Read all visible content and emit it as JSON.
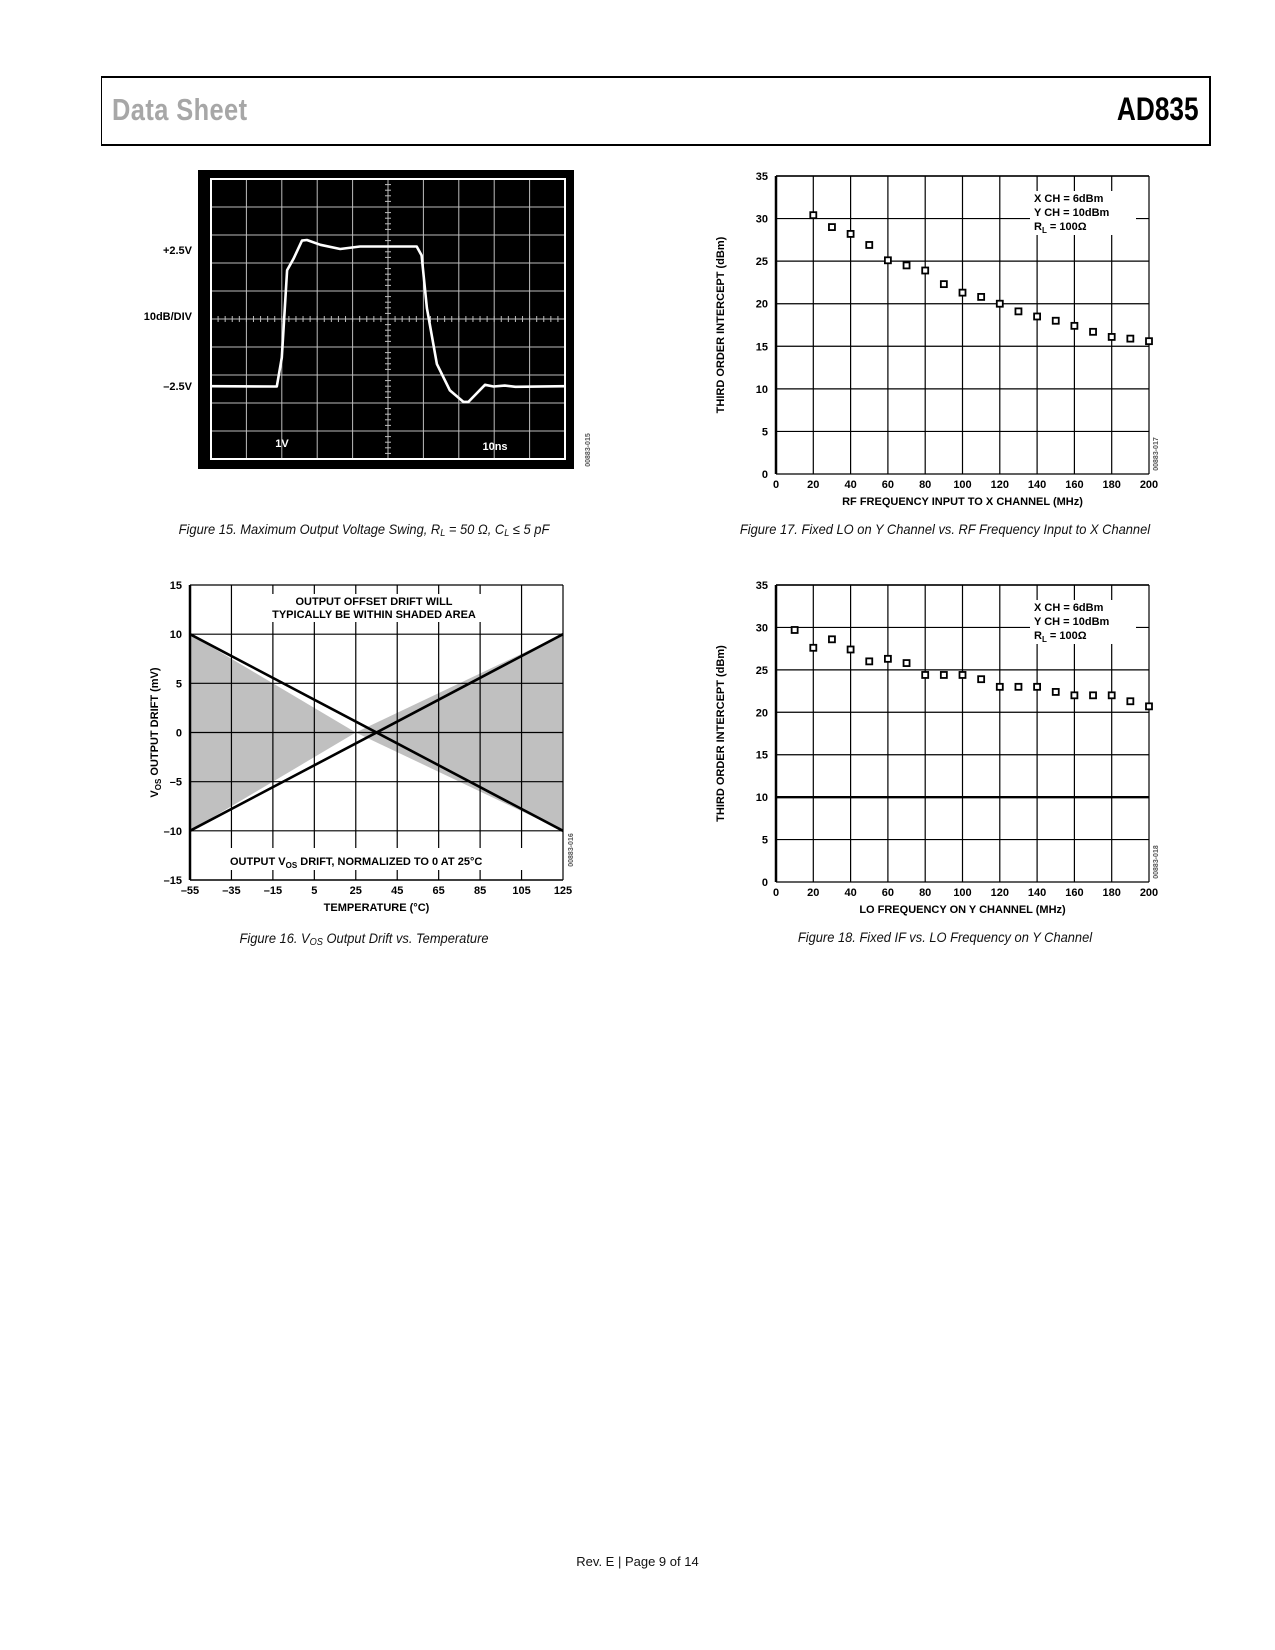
{
  "header": {
    "title_left": "Data Sheet",
    "title_right": "AD835"
  },
  "footer": {
    "text": "Rev. E | Page 9 of 14"
  },
  "captions": {
    "fig15": [
      "Figure 15. Maximum Output Voltage Swing, R",
      "L",
      " = 50 Ω, C",
      "L",
      " ≤ 5 pF"
    ],
    "fig16": [
      "Figure 16. V",
      "OS",
      " Output Drift vs. Temperature"
    ],
    "fig17": [
      "Figure 17. Fixed LO on Y Channel vs. RF Frequency Input to X Channel"
    ],
    "fig18": [
      "Figure 18. Fixed IF vs. LO Frequency on Y Channel"
    ]
  },
  "chart_data": [
    {
      "id": "fig15",
      "type": "line",
      "style": "oscilloscope",
      "colors": {
        "background": "#000000",
        "trace": "#ffffff",
        "grid": "#bdbdbd"
      },
      "divisions": [
        10,
        10
      ],
      "side_labels": [
        "+2.5V",
        "10dB/DIV",
        "–2.5V"
      ],
      "screen_labels": [
        "1V",
        "10ns"
      ],
      "code": "00883-015",
      "trace": {
        "x_div": [
          0,
          1.86,
          2.0,
          2.15,
          2.33,
          2.57,
          2.71,
          3.09,
          3.65,
          4.21,
          5.81,
          5.95,
          6.1,
          6.38,
          6.75,
          7.13,
          7.27,
          7.74,
          7.98,
          8.3,
          8.6,
          10
        ],
        "y_div": [
          2.6,
          2.59,
          3.62,
          6.74,
          7.15,
          7.8,
          7.82,
          7.65,
          7.5,
          7.59,
          7.59,
          7.27,
          5.39,
          3.39,
          2.45,
          2.04,
          2.04,
          2.65,
          2.59,
          2.62,
          2.58,
          2.6
        ]
      }
    },
    {
      "id": "fig17",
      "type": "scatter",
      "xlabel": "RF FREQUENCY INPUT TO X CHANNEL (MHz)",
      "ylabel": "THIRD ORDER INTERCEPT (dBm)",
      "xlim": [
        0,
        200
      ],
      "ylim": [
        0,
        35
      ],
      "xticks": [
        "0",
        "20",
        "40",
        "60",
        "80",
        "100",
        "120",
        "140",
        "160",
        "180",
        "200"
      ],
      "yticks": [
        "0",
        "5",
        "10",
        "15",
        "20",
        "25",
        "30",
        "35"
      ],
      "grid": true,
      "legend": {
        "line1": "X CH = 6dBm",
        "line2": "Y CH = 10dBm",
        "line3_main": "R",
        "line3_sub": "L",
        "line3_rest": " = 100Ω"
      },
      "code": "00883-017",
      "x": [
        20,
        30,
        40,
        50,
        60,
        70,
        80,
        90,
        100,
        110,
        120,
        130,
        140,
        150,
        160,
        170,
        180,
        190,
        200
      ],
      "y": [
        30.4,
        29.0,
        28.2,
        26.9,
        25.1,
        24.5,
        23.9,
        22.3,
        21.3,
        20.8,
        20.0,
        19.1,
        18.5,
        18.0,
        17.4,
        16.7,
        16.1,
        15.9,
        15.6
      ]
    },
    {
      "id": "fig16",
      "type": "area",
      "xlabel": "TEMPERATURE (°C)",
      "ylabel_parts": [
        "V",
        "OS",
        " OUTPUT DRIFT (mV)"
      ],
      "xlim": [
        -55,
        125
      ],
      "ylim": [
        -15,
        15
      ],
      "xticks": [
        "–55",
        "–35",
        "–15",
        "5",
        "25",
        "45",
        "65",
        "85",
        "105",
        "125"
      ],
      "yticks": [
        "–15",
        "–10",
        "–5",
        "0",
        "5",
        "10",
        "15"
      ],
      "grid": true,
      "colors": {
        "shade": "#c0c0c0",
        "line": "#000000"
      },
      "annotation_top": [
        "OUTPUT OFFSET DRIFT WILL",
        "TYPICALLY BE WITHIN SHADED AREA"
      ],
      "annotation_bottom": [
        "OUTPUT V",
        "OS",
        " DRIFT, NORMALIZED TO 0 AT 25°C"
      ],
      "code": "00883-016",
      "upper_bound": {
        "x": [
          -55,
          25,
          125
        ],
        "y": [
          10,
          0,
          10
        ]
      },
      "lower_bound": {
        "x": [
          -55,
          25,
          125
        ],
        "y": [
          -10,
          0,
          -10
        ]
      }
    },
    {
      "id": "fig18",
      "type": "scatter",
      "xlabel": "LO FREQUENCY ON Y CHANNEL (MHz)",
      "ylabel": "THIRD ORDER INTERCEPT (dBm)",
      "xlim": [
        0,
        200
      ],
      "ylim": [
        0,
        35
      ],
      "xticks": [
        "0",
        "20",
        "40",
        "60",
        "80",
        "100",
        "120",
        "140",
        "160",
        "180",
        "200"
      ],
      "yticks": [
        "0",
        "5",
        "10",
        "15",
        "20",
        "25",
        "30",
        "35"
      ],
      "grid": true,
      "legend": {
        "line1": "X CH = 6dBm",
        "line2": "Y CH = 10dBm",
        "line3_main": "R",
        "line3_sub": "L",
        "line3_rest": " = 100Ω"
      },
      "code": "00883-018",
      "x": [
        10,
        20,
        30,
        40,
        50,
        60,
        70,
        80,
        90,
        100,
        110,
        120,
        130,
        140,
        150,
        160,
        170,
        180,
        190,
        200
      ],
      "y": [
        29.7,
        27.6,
        28.6,
        27.4,
        26.0,
        26.3,
        25.8,
        24.4,
        24.4,
        24.4,
        23.9,
        23.0,
        23.0,
        23.0,
        22.4,
        22.0,
        22.0,
        22.0,
        21.3,
        20.7
      ]
    }
  ]
}
